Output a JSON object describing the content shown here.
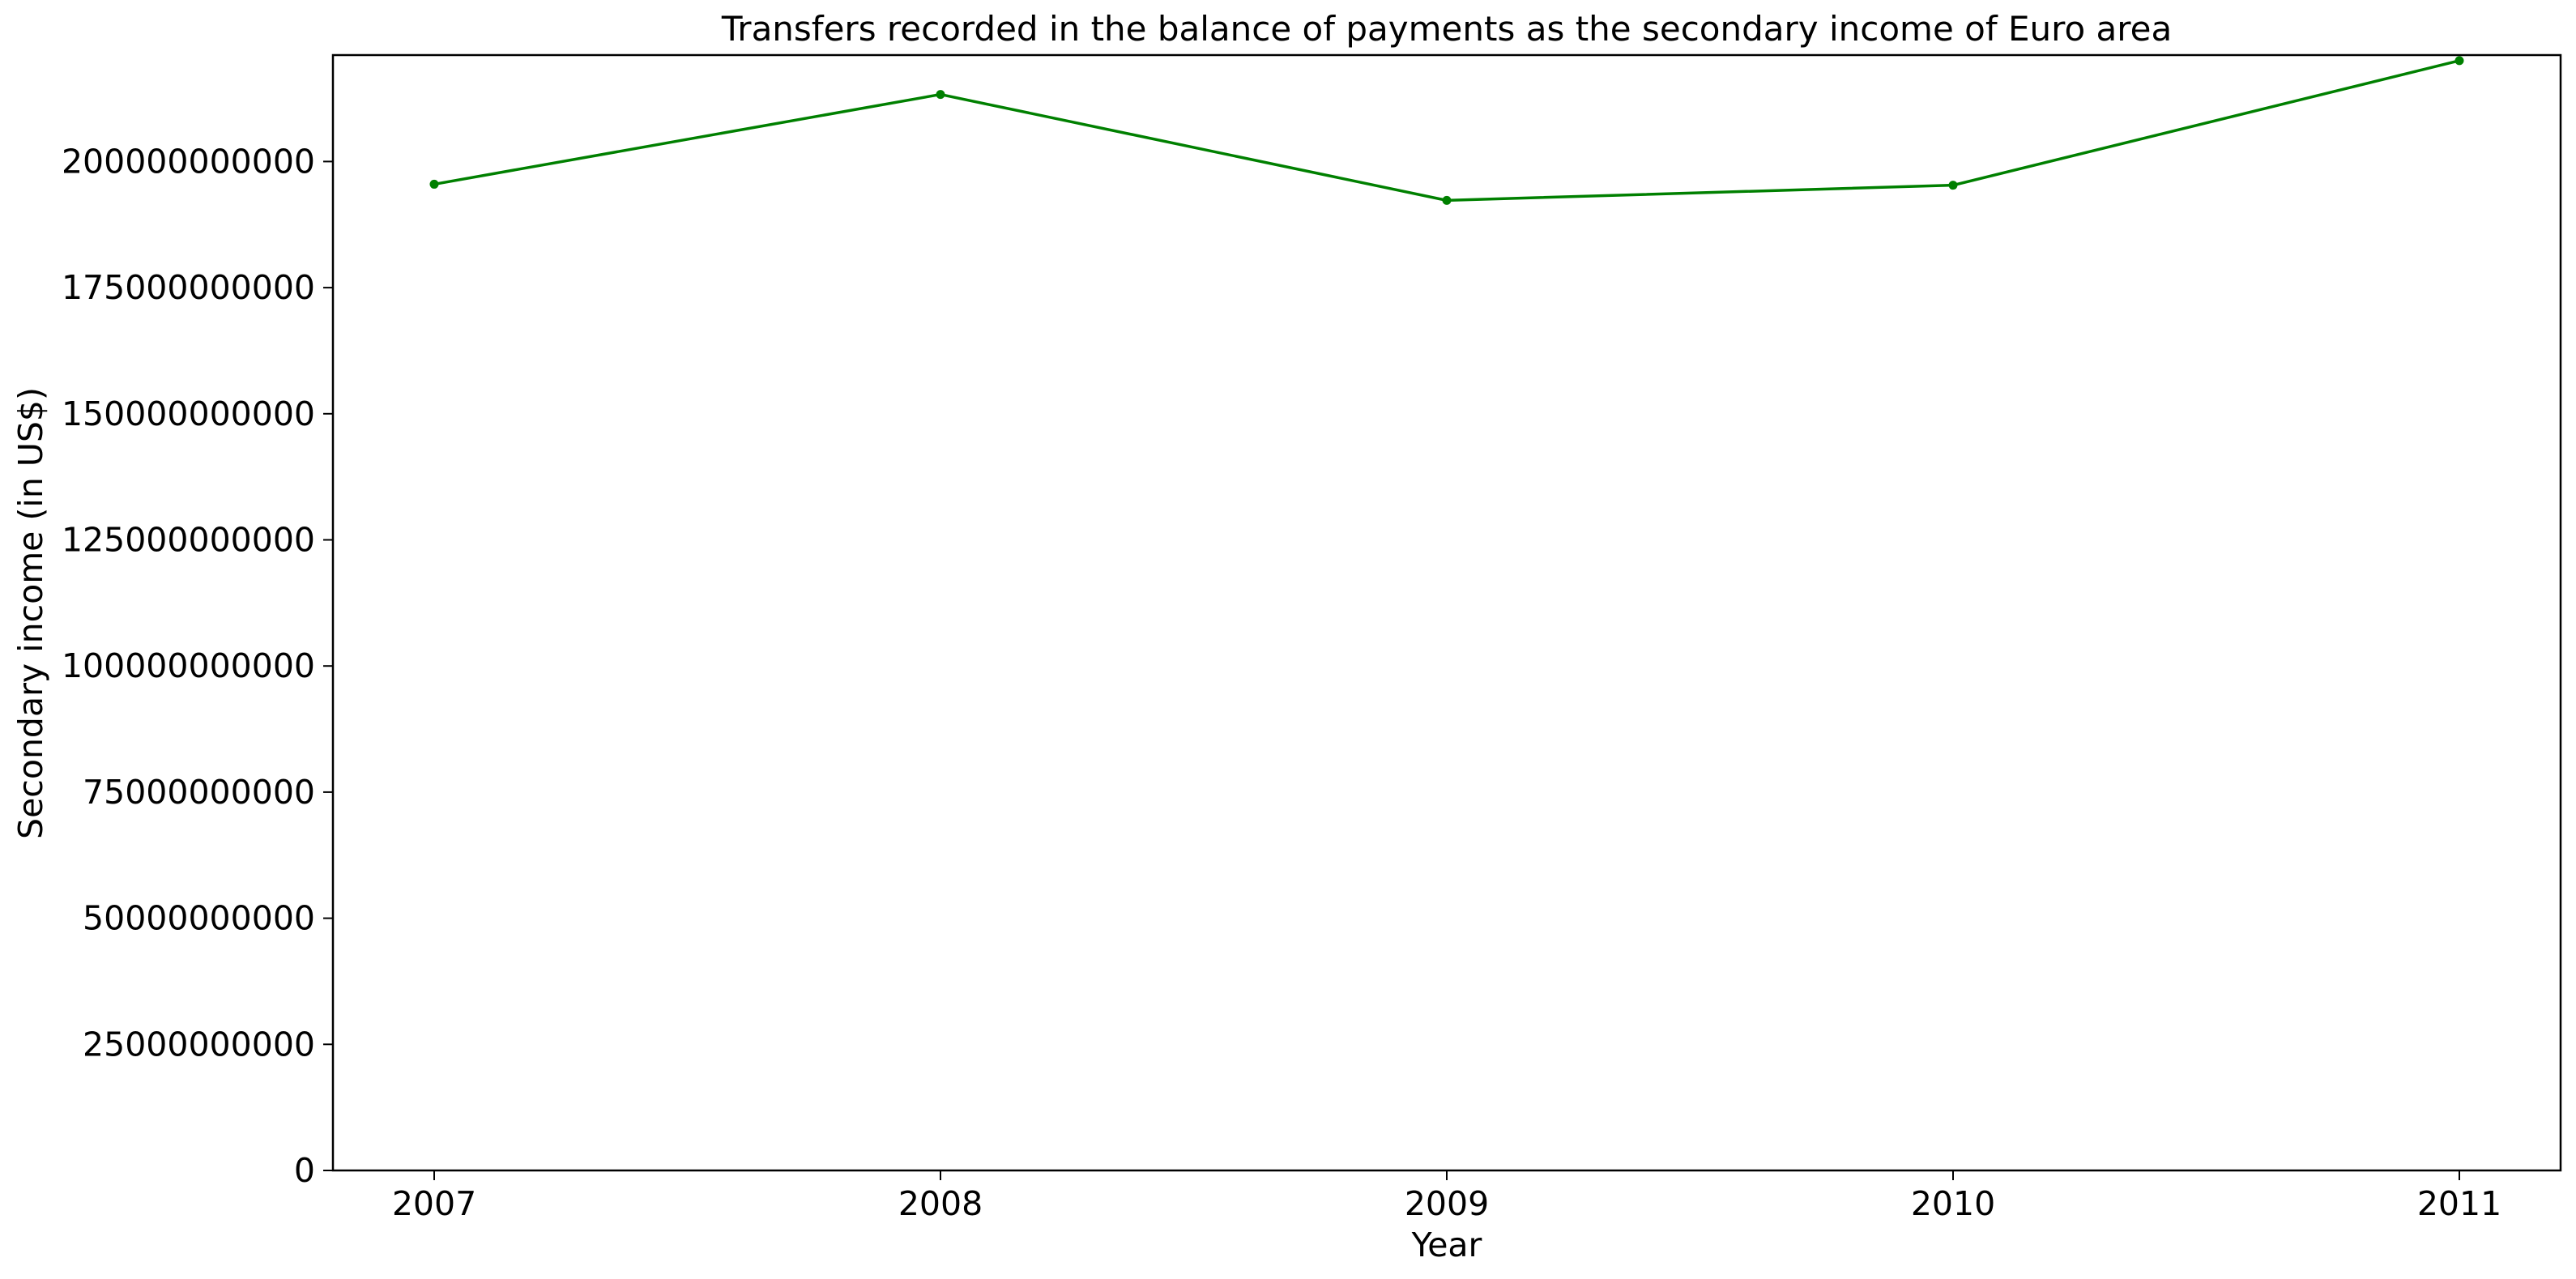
{
  "chart_data": {
    "type": "line",
    "title": "Transfers recorded in the balance of payments as the secondary income of Euro area",
    "xlabel": "Year",
    "ylabel": "Secondary income (in US$)",
    "x": [
      "2007",
      "2008",
      "2009",
      "2010",
      "2011"
    ],
    "series": [
      {
        "values": [
          195500000000,
          213300000000,
          192300000000,
          195300000000,
          220000000000
        ]
      }
    ],
    "yticks": [
      0,
      25000000000,
      50000000000,
      75000000000,
      100000000000,
      125000000000,
      150000000000,
      175000000000,
      200000000000
    ],
    "ytick_labels": [
      "0",
      "25000000000",
      "50000000000",
      "75000000000",
      "100000000000",
      "125000000000",
      "150000000000",
      "175000000000",
      "200000000000"
    ],
    "ylim": [
      0,
      221100000000
    ],
    "grid": false,
    "line_color": "#008000"
  }
}
